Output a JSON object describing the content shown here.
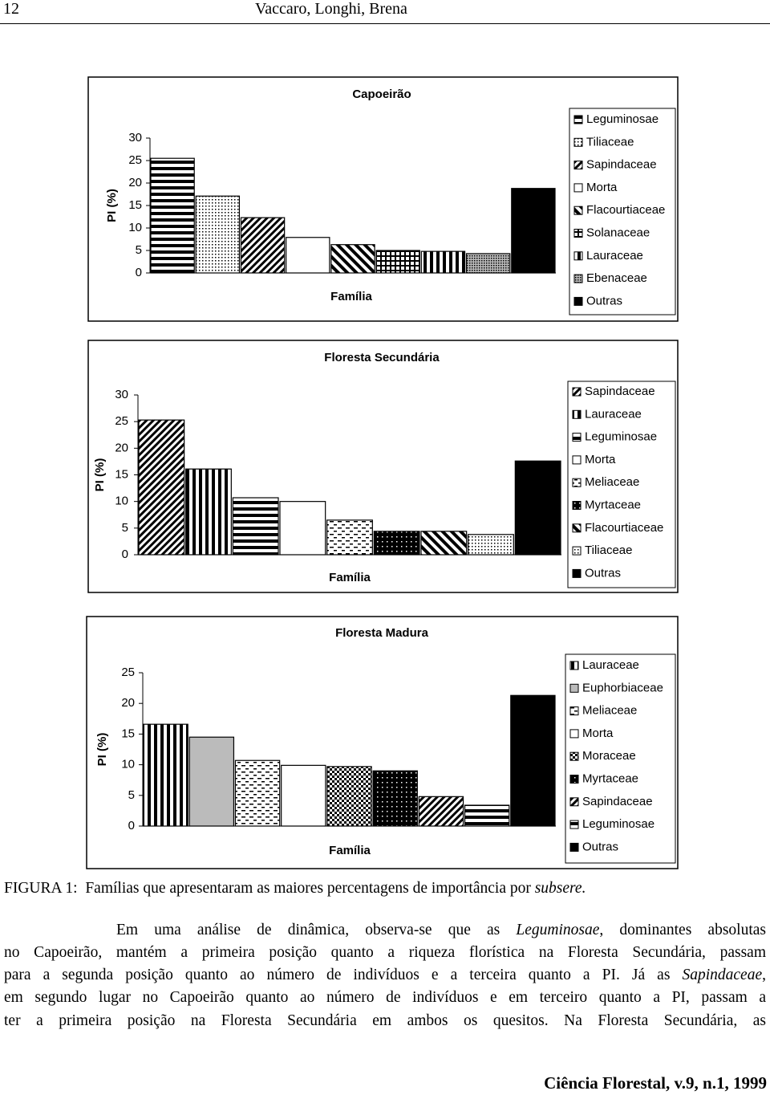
{
  "header": {
    "page": "12",
    "authors": "Vaccaro, Longhi, Brena"
  },
  "chart_data": [
    {
      "type": "bar",
      "title": "Capoeirão",
      "y_label": "PI (%)",
      "x_label": "Família",
      "categories": [
        "Leguminosae",
        "Tiliaceae",
        "Sapindaceae",
        "Morta",
        "Flacourtiaceae",
        "Solanaceae",
        "Lauraceae",
        "Ebenaceae",
        "Outras"
      ],
      "values": [
        25.5,
        17.1,
        12.3,
        7.9,
        6.3,
        5.0,
        4.8,
        4.3,
        18.8
      ],
      "ylim": [
        0,
        30
      ],
      "yticks": [
        0,
        5,
        10,
        15,
        20,
        25,
        30
      ]
    },
    {
      "type": "bar",
      "title": "Floresta Secundária",
      "y_label": "PI (%)",
      "x_label": "Família",
      "categories": [
        "Sapindaceae",
        "Lauraceae",
        "Leguminosae",
        "Morta",
        "Meliaceae",
        "Myrtaceae",
        "Flacourtiaceae",
        "Tiliaceae",
        "Outras"
      ],
      "values": [
        25.3,
        16.1,
        10.7,
        10.0,
        6.5,
        4.4,
        4.4,
        3.8,
        17.6
      ],
      "ylim": [
        0,
        30
      ],
      "yticks": [
        0,
        5,
        10,
        15,
        20,
        25,
        30
      ]
    },
    {
      "type": "bar",
      "title": "Floresta Madura",
      "y_label": "PI (%)",
      "x_label": "Família",
      "categories": [
        "Lauraceae",
        "Euphorbiaceae",
        "Meliaceae",
        "Morta",
        "Moraceae",
        "Myrtaceae",
        "Sapindaceae",
        "Leguminosae",
        "Outras"
      ],
      "values": [
        16.6,
        14.5,
        10.7,
        9.9,
        9.7,
        9.0,
        4.8,
        3.4,
        21.3
      ],
      "ylim": [
        0,
        25
      ],
      "yticks": [
        0,
        5,
        10,
        15,
        20,
        25
      ]
    }
  ],
  "caption": {
    "label": "FIGURA 1:",
    "text": "Famílias que apresentaram as maiores percentagens de importância por",
    "italic": "subsere."
  },
  "paragraph": [
    [
      {
        "text": "Em uma análise de dinâmica, observa-se que as "
      },
      {
        "text": "Leguminosae",
        "italic": true
      },
      {
        "text": ", dominantes absolutas"
      }
    ],
    [
      {
        "text": "no Capoeirão, mantém a primeira posição quanto a riqueza florística na Floresta Secundária, passam"
      }
    ],
    [
      {
        "text": "para a segunda posição quanto ao número de indivíduos e a terceira quanto a PI. Já as "
      },
      {
        "text": "Sapindaceae",
        "italic": true
      },
      {
        "text": ","
      }
    ],
    [
      {
        "text": "em segundo lugar no Capoeirão quanto ao número de indivíduos e em terceiro quanto a PI, passam a"
      }
    ],
    [
      {
        "text": "ter a primeira posição na Floresta Secundária em ambos os quesitos. Na Floresta Secundária, as"
      }
    ]
  ],
  "footer": "Ciência Florestal, v.9, n.1, 1999"
}
